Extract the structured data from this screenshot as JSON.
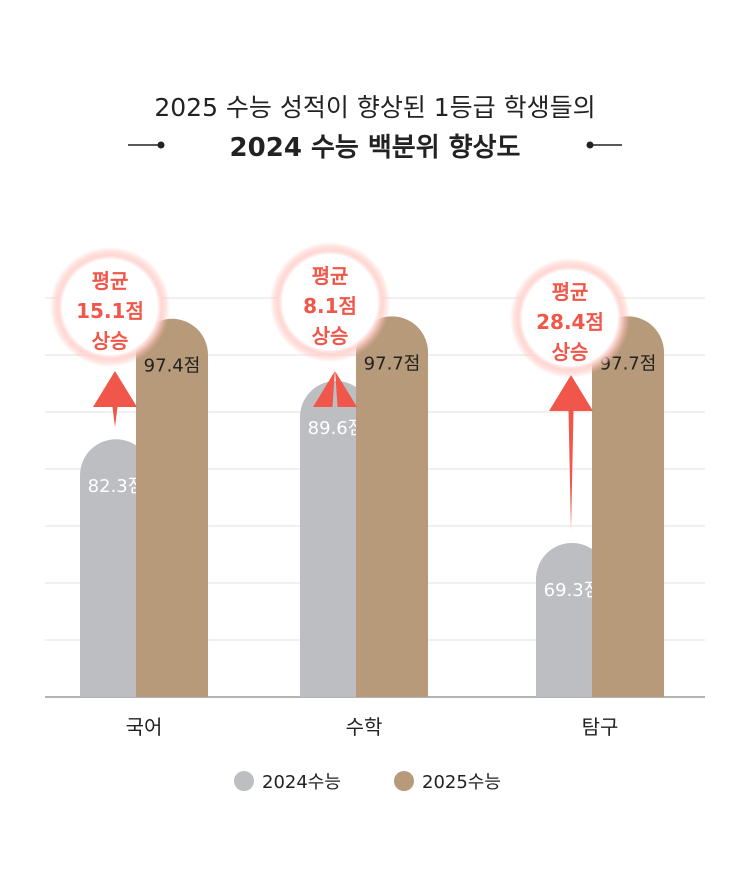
{
  "chart_data": {
    "type": "bar",
    "title_line1": "2025 수능 성적이 향상된 1등급 학생들의",
    "title_line2": "2024 수능 백분위 향상도",
    "categories": [
      "국어",
      "수학",
      "탐구"
    ],
    "series": [
      {
        "name": "2024수능",
        "values": [
          82.3,
          89.6,
          69.3
        ],
        "labels": [
          "82.3점",
          "89.6점",
          "69.3점"
        ],
        "color": "#bdbec2",
        "label_color": "#ffffff"
      },
      {
        "name": "2025수능",
        "values": [
          97.4,
          97.7,
          97.7
        ],
        "labels": [
          "97.4점",
          "97.7점",
          "97.7점"
        ],
        "color": "#b79a79",
        "label_color": "#222222"
      }
    ],
    "annotations": [
      [
        "평균",
        "15.1점",
        "상승"
      ],
      [
        "평균",
        "8.1점",
        "상승"
      ],
      [
        "평균",
        "28.4점",
        "상승"
      ]
    ],
    "ylim": [
      50,
      100
    ],
    "grid": true,
    "legend_position": "bottom-center",
    "accent_color": "#f0574a"
  }
}
